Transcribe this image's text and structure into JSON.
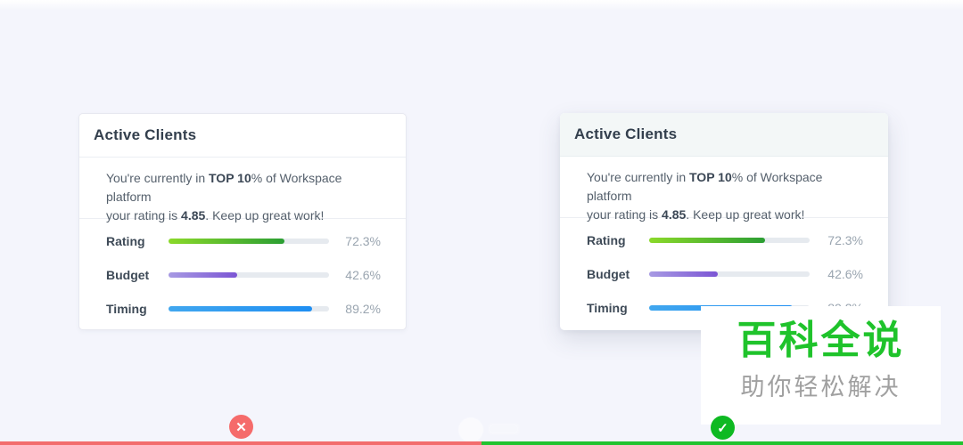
{
  "page": {
    "background": "#f4f5fc"
  },
  "card": {
    "title": "Active Clients",
    "intro": {
      "p1": "You're currently in ",
      "b1": "TOP 10",
      "p2": "% of Workspace platform",
      "p3": "your rating is ",
      "b2": "4.85",
      "p4": ". Keep up great work!"
    },
    "metrics": [
      {
        "label": "Rating",
        "value": "72.3%",
        "percent": 72.3,
        "color_from": "#8bd92a",
        "color_to": "#2b9e33"
      },
      {
        "label": "Budget",
        "value": "42.6%",
        "percent": 42.6,
        "color_from": "#a79ae3",
        "color_to": "#7b55d4"
      },
      {
        "label": "Timing",
        "value": "89.2%",
        "percent": 89.2,
        "color_from": "#41a7ef",
        "color_to": "#1e8ef2"
      }
    ],
    "track_color": "#e6eaef"
  },
  "watermark": {
    "title": "百科全说",
    "subtitle": "助你轻松解决",
    "title_color": "#1fc32b",
    "subtitle_color": "#a0a0a0"
  },
  "footer": {
    "wrong_icon": "✕",
    "correct_icon": "✓",
    "wrong_color": "#f56b6b",
    "correct_color": "#0eb922",
    "left_bar_color": "#f26d6d",
    "right_bar_color": "#22c32e"
  }
}
